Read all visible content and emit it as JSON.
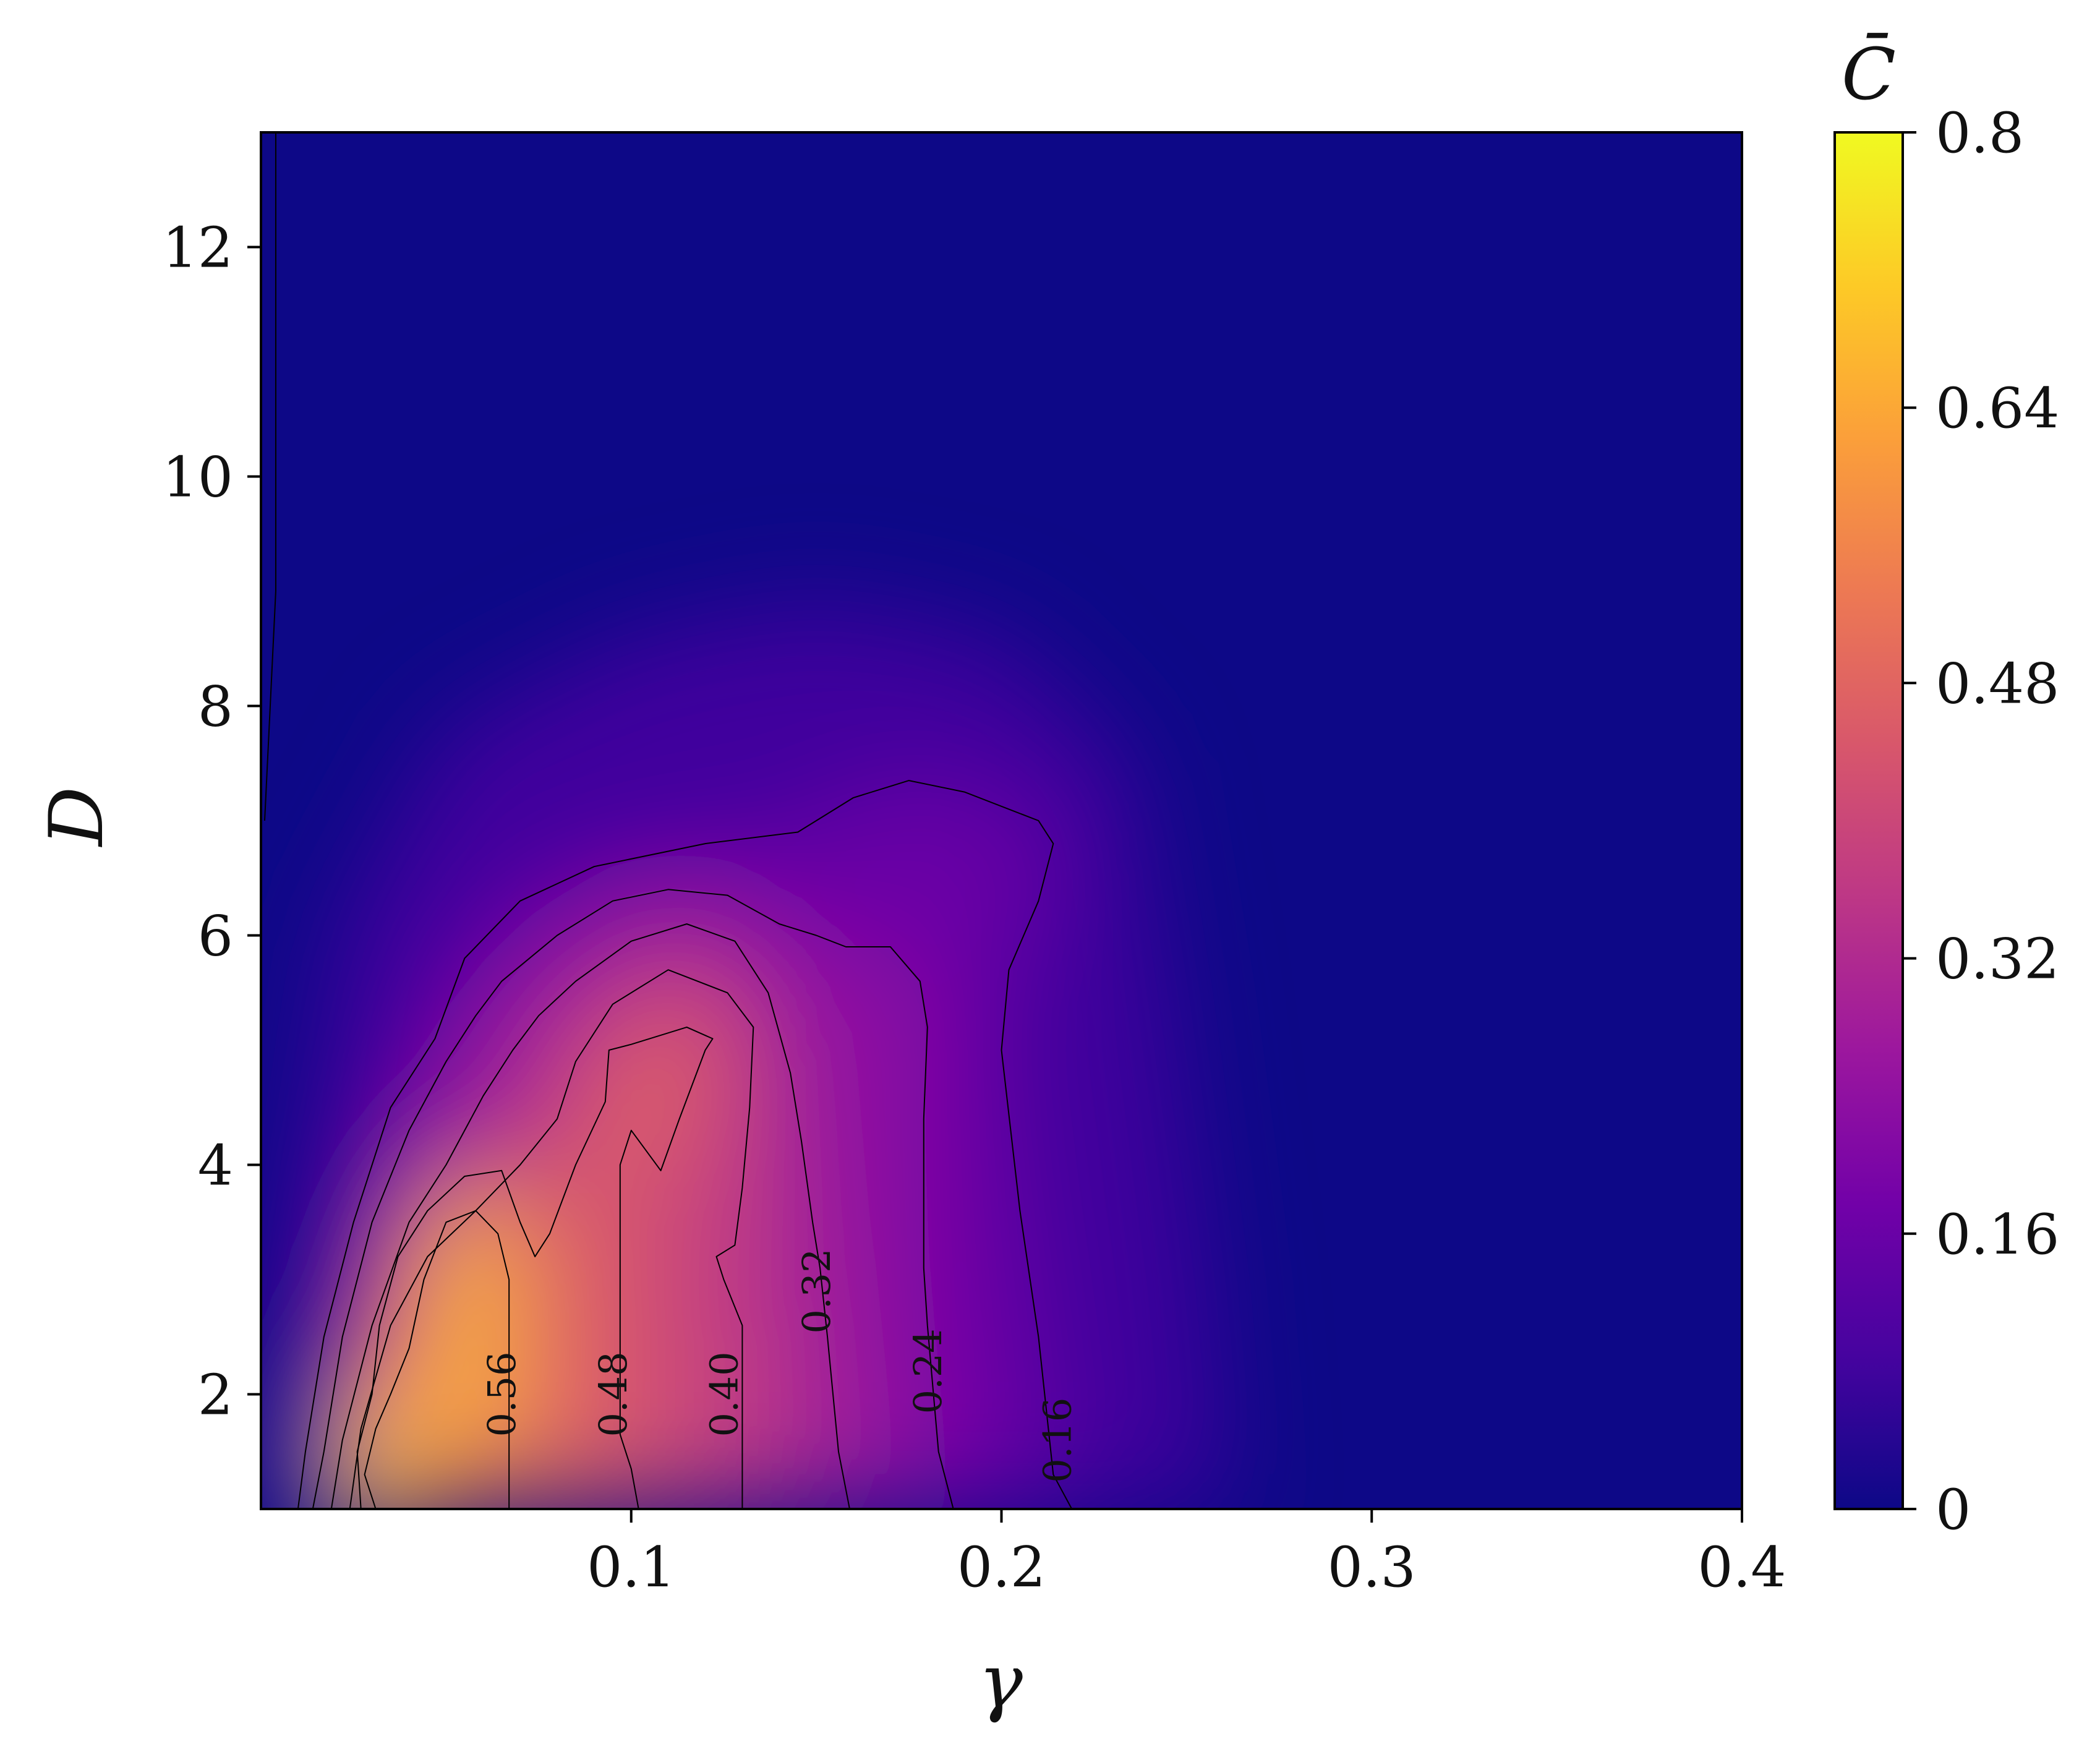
{
  "chart_data": {
    "type": "heatmap",
    "xlabel": "γ",
    "ylabel": "D",
    "xlim": [
      0,
      0.4
    ],
    "ylim": [
      1,
      13
    ],
    "x_ticks": [
      {
        "value": 0.1,
        "label": "0.1"
      },
      {
        "value": 0.2,
        "label": "0.2"
      },
      {
        "value": 0.3,
        "label": "0.3"
      },
      {
        "value": 0.4,
        "label": "0.4"
      }
    ],
    "y_ticks": [
      {
        "value": 2,
        "label": "2"
      },
      {
        "value": 4,
        "label": "4"
      },
      {
        "value": 6,
        "label": "6"
      },
      {
        "value": 8,
        "label": "8"
      },
      {
        "value": 10,
        "label": "10"
      },
      {
        "value": 12,
        "label": "12"
      }
    ],
    "colorbar": {
      "label": "C̄",
      "min": 0,
      "max": 0.8,
      "colormap": "plasma",
      "colors": [
        "#0d0887",
        "#46039f",
        "#7201a8",
        "#9c179e",
        "#bd3786",
        "#d8576b",
        "#ed7953",
        "#fb9f3a",
        "#fdca26",
        "#f0f921"
      ],
      "ticks": [
        {
          "value": 0,
          "label": "0"
        },
        {
          "value": 0.16,
          "label": "0.16"
        },
        {
          "value": 0.32,
          "label": "0.32"
        },
        {
          "value": 0.48,
          "label": "0.48"
        },
        {
          "value": 0.64,
          "label": "0.64"
        },
        {
          "value": 0.8,
          "label": "0.8"
        }
      ]
    },
    "contour_lines": [
      {
        "level": 0.16,
        "label": "0.16",
        "label_at": [
          0.215,
          1.6
        ],
        "path": [
          [
            0.219,
            1.0
          ],
          [
            0.214,
            1.3
          ],
          [
            0.21,
            2.5
          ],
          [
            0.205,
            3.6
          ],
          [
            0.2,
            5.0
          ],
          [
            0.202,
            5.7
          ],
          [
            0.21,
            6.3
          ],
          [
            0.214,
            6.8
          ],
          [
            0.21,
            7.0
          ],
          [
            0.19,
            7.25
          ],
          [
            0.175,
            7.35
          ],
          [
            0.16,
            7.2
          ],
          [
            0.145,
            6.9
          ],
          [
            0.12,
            6.8
          ],
          [
            0.09,
            6.6
          ],
          [
            0.07,
            6.3
          ],
          [
            0.055,
            5.8
          ],
          [
            0.047,
            5.1
          ],
          [
            0.035,
            4.5
          ],
          [
            0.025,
            3.5
          ],
          [
            0.017,
            2.5
          ],
          [
            0.012,
            1.5
          ],
          [
            0.01,
            1.0
          ]
        ]
      },
      {
        "level": 0.24,
        "label": "0.24",
        "label_at": [
          0.18,
          2.2
        ],
        "path": [
          [
            0.187,
            1.0
          ],
          [
            0.183,
            1.5
          ],
          [
            0.18,
            2.6
          ],
          [
            0.179,
            3.1
          ],
          [
            0.179,
            4.4
          ],
          [
            0.18,
            5.2
          ],
          [
            0.178,
            5.6
          ],
          [
            0.17,
            5.9
          ],
          [
            0.158,
            5.9
          ],
          [
            0.15,
            6.0
          ],
          [
            0.14,
            6.1
          ],
          [
            0.126,
            6.35
          ],
          [
            0.11,
            6.4
          ],
          [
            0.095,
            6.3
          ],
          [
            0.08,
            6.0
          ],
          [
            0.065,
            5.6
          ],
          [
            0.058,
            5.3
          ],
          [
            0.05,
            4.9
          ],
          [
            0.04,
            4.3
          ],
          [
            0.03,
            3.5
          ],
          [
            0.022,
            2.5
          ],
          [
            0.017,
            1.5
          ],
          [
            0.014,
            1.0
          ]
        ]
      },
      {
        "level": 0.32,
        "label": "0.32",
        "label_at": [
          0.15,
          2.9
        ],
        "path": [
          [
            0.159,
            1.0
          ],
          [
            0.156,
            1.5
          ],
          [
            0.153,
            2.5
          ],
          [
            0.151,
            3.1
          ],
          [
            0.149,
            3.5
          ],
          [
            0.146,
            4.2
          ],
          [
            0.143,
            4.8
          ],
          [
            0.137,
            5.5
          ],
          [
            0.128,
            5.95
          ],
          [
            0.115,
            6.1
          ],
          [
            0.1,
            5.95
          ],
          [
            0.085,
            5.6
          ],
          [
            0.075,
            5.3
          ],
          [
            0.068,
            5.0
          ],
          [
            0.06,
            4.6
          ],
          [
            0.05,
            4.0
          ],
          [
            0.04,
            3.5
          ],
          [
            0.03,
            2.6
          ],
          [
            0.022,
            1.6
          ],
          [
            0.019,
            1.0
          ]
        ]
      },
      {
        "level": 0.4,
        "label": "0.40",
        "label_at": [
          0.125,
          2.0
        ],
        "path": [
          [
            0.13,
            1.0
          ],
          [
            0.13,
            2.0
          ],
          [
            0.13,
            2.6
          ],
          [
            0.125,
            3.0
          ],
          [
            0.123,
            3.2
          ],
          [
            0.128,
            3.3
          ],
          [
            0.13,
            3.8
          ],
          [
            0.132,
            4.5
          ],
          [
            0.133,
            5.2
          ],
          [
            0.126,
            5.5
          ],
          [
            0.11,
            5.7
          ],
          [
            0.095,
            5.4
          ],
          [
            0.085,
            4.9
          ],
          [
            0.08,
            4.4
          ],
          [
            0.07,
            4.0
          ],
          [
            0.058,
            3.6
          ],
          [
            0.045,
            3.2
          ],
          [
            0.035,
            2.6
          ],
          [
            0.027,
            1.7
          ],
          [
            0.024,
            1.0
          ]
        ]
      },
      {
        "level": 0.48,
        "label": "0.48",
        "label_at": [
          0.095,
          2.0
        ],
        "path": [
          [
            0.102,
            1.0
          ],
          [
            0.1,
            1.35
          ],
          [
            0.097,
            1.65
          ],
          [
            0.097,
            2.6
          ],
          [
            0.097,
            4.0
          ],
          [
            0.1,
            4.3
          ],
          [
            0.108,
            3.95
          ],
          [
            0.113,
            4.4
          ],
          [
            0.12,
            5.0
          ],
          [
            0.122,
            5.1
          ],
          [
            0.115,
            5.2
          ],
          [
            0.1,
            5.05
          ],
          [
            0.094,
            5.0
          ],
          [
            0.093,
            4.55
          ],
          [
            0.085,
            4.0
          ],
          [
            0.078,
            3.4
          ],
          [
            0.074,
            3.2
          ],
          [
            0.07,
            3.5
          ],
          [
            0.065,
            3.95
          ],
          [
            0.055,
            3.9
          ],
          [
            0.045,
            3.6
          ],
          [
            0.037,
            3.2
          ],
          [
            0.032,
            2.6
          ],
          [
            0.03,
            2.0
          ],
          [
            0.026,
            1.5
          ],
          [
            0.027,
            1.0
          ]
        ]
      },
      {
        "level": 0.56,
        "label": "0.56",
        "label_at": [
          0.065,
          2.0
        ],
        "path": [
          [
            0.067,
            1.0
          ],
          [
            0.067,
            1.3
          ],
          [
            0.067,
            1.7
          ],
          [
            0.067,
            2.5
          ],
          [
            0.067,
            3.0
          ],
          [
            0.064,
            3.4
          ],
          [
            0.058,
            3.6
          ],
          [
            0.05,
            3.5
          ],
          [
            0.044,
            3.0
          ],
          [
            0.04,
            2.4
          ],
          [
            0.035,
            2.0
          ],
          [
            0.031,
            1.7
          ],
          [
            0.028,
            1.3
          ],
          [
            0.031,
            1.0
          ]
        ]
      }
    ]
  }
}
